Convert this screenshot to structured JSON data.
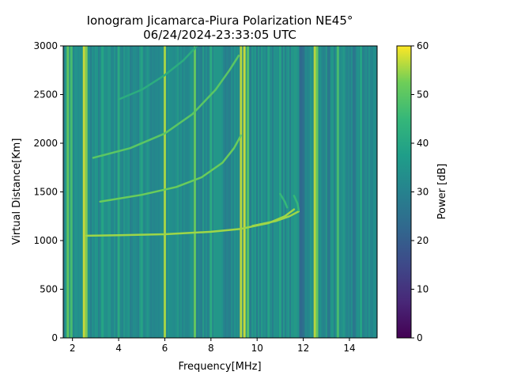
{
  "chart_data": {
    "type": "heatmap",
    "title_line1": "Ionogram Jicamarca-Piura Polarization NE45°",
    "title_line2": "06/24/2024-23:33:05 UTC",
    "xlabel": "Frequency[MHz]",
    "ylabel": "Virtual Distance[Km]",
    "xlim": [
      1.6,
      15.2
    ],
    "ylim": [
      0,
      3000
    ],
    "x_ticks": [
      2,
      4,
      6,
      8,
      10,
      12,
      14
    ],
    "y_ticks": [
      0,
      500,
      1000,
      1500,
      2000,
      2500,
      3000
    ],
    "colorbar": {
      "label": "Power [dB]",
      "range": [
        0,
        60
      ],
      "ticks": [
        0,
        10,
        20,
        30,
        40,
        50,
        60
      ],
      "colormap": "viridis"
    },
    "background_level_db": 32,
    "interference_lines_mhz": [
      {
        "f": 1.8,
        "db": 52
      },
      {
        "f": 1.95,
        "db": 48
      },
      {
        "f": 2.5,
        "db": 58
      },
      {
        "f": 2.6,
        "db": 54
      },
      {
        "f": 3.3,
        "db": 40
      },
      {
        "f": 4.0,
        "db": 42
      },
      {
        "f": 5.0,
        "db": 40
      },
      {
        "f": 6.0,
        "db": 56
      },
      {
        "f": 7.3,
        "db": 52
      },
      {
        "f": 8.0,
        "db": 42
      },
      {
        "f": 9.3,
        "db": 57
      },
      {
        "f": 9.45,
        "db": 58
      },
      {
        "f": 9.6,
        "db": 50
      },
      {
        "f": 10.5,
        "db": 40
      },
      {
        "f": 11.0,
        "db": 40
      },
      {
        "f": 12.5,
        "db": 57
      },
      {
        "f": 12.6,
        "db": 52
      },
      {
        "f": 13.5,
        "db": 48
      },
      {
        "f": 14.5,
        "db": 40
      }
    ],
    "dark_bands_mhz": [
      {
        "f": 11.9,
        "db": 22
      },
      {
        "f": 12.0,
        "db": 24
      },
      {
        "f": 13.1,
        "db": 26
      },
      {
        "f": 14.2,
        "db": 26
      }
    ],
    "traces": [
      {
        "db": 55,
        "points": [
          [
            2.6,
            1050
          ],
          [
            4,
            1055
          ],
          [
            6,
            1065
          ],
          [
            8,
            1090
          ],
          [
            9.3,
            1120
          ],
          [
            10.5,
            1180
          ],
          [
            11.2,
            1250
          ],
          [
            11.6,
            1320
          ]
        ]
      },
      {
        "db": 55,
        "points": [
          [
            9.8,
            1150
          ],
          [
            10.8,
            1200
          ],
          [
            11.4,
            1250
          ],
          [
            11.8,
            1300
          ]
        ]
      },
      {
        "db": 45,
        "points": [
          [
            11.0,
            1480
          ],
          [
            11.2,
            1400
          ],
          [
            11.3,
            1340
          ]
        ]
      },
      {
        "db": 45,
        "points": [
          [
            11.6,
            1460
          ],
          [
            11.75,
            1380
          ],
          [
            11.8,
            1310
          ]
        ]
      },
      {
        "db": 52,
        "points": [
          [
            3.2,
            1400
          ],
          [
            5,
            1470
          ],
          [
            6.5,
            1550
          ],
          [
            7.6,
            1650
          ],
          [
            8.5,
            1800
          ],
          [
            9.0,
            1950
          ],
          [
            9.3,
            2080
          ]
        ]
      },
      {
        "db": 50,
        "points": [
          [
            2.9,
            1850
          ],
          [
            4.5,
            1950
          ],
          [
            6,
            2100
          ],
          [
            7.2,
            2300
          ],
          [
            8.2,
            2550
          ],
          [
            8.8,
            2750
          ],
          [
            9.2,
            2900
          ]
        ]
      },
      {
        "db": 42,
        "points": [
          [
            4.0,
            2450
          ],
          [
            5.0,
            2550
          ],
          [
            6.0,
            2700
          ],
          [
            6.8,
            2850
          ],
          [
            7.4,
            3000
          ]
        ]
      }
    ]
  }
}
